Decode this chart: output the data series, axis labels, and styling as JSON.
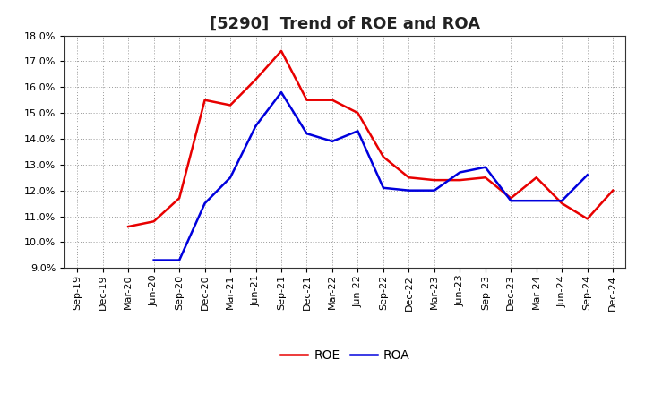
{
  "title": "[5290]  Trend of ROE and ROA",
  "x_labels": [
    "Sep-19",
    "Dec-19",
    "Mar-20",
    "Jun-20",
    "Sep-20",
    "Dec-20",
    "Mar-21",
    "Jun-21",
    "Sep-21",
    "Dec-21",
    "Mar-22",
    "Jun-22",
    "Sep-22",
    "Dec-22",
    "Mar-23",
    "Jun-23",
    "Sep-23",
    "Dec-23",
    "Mar-24",
    "Jun-24",
    "Sep-24",
    "Dec-24"
  ],
  "roe_values": [
    null,
    null,
    10.6,
    10.8,
    11.7,
    15.5,
    15.3,
    16.3,
    17.4,
    15.5,
    15.5,
    15.0,
    13.3,
    12.5,
    12.4,
    12.4,
    12.5,
    11.7,
    12.5,
    11.5,
    10.9,
    12.0
  ],
  "roa_values": [
    null,
    null,
    null,
    9.3,
    9.3,
    11.5,
    12.5,
    14.5,
    15.8,
    14.2,
    13.9,
    14.3,
    12.1,
    12.0,
    12.0,
    12.7,
    12.9,
    11.6,
    11.6,
    11.6,
    12.6,
    null
  ],
  "ylim": [
    9.0,
    18.0
  ],
  "yticks": [
    9.0,
    10.0,
    11.0,
    12.0,
    13.0,
    14.0,
    15.0,
    16.0,
    17.0,
    18.0
  ],
  "roe_color": "#e80000",
  "roa_color": "#0000dd",
  "background_color": "#ffffff",
  "grid_color": "#999999",
  "title_fontsize": 13,
  "tick_fontsize": 8,
  "legend_fontsize": 10
}
